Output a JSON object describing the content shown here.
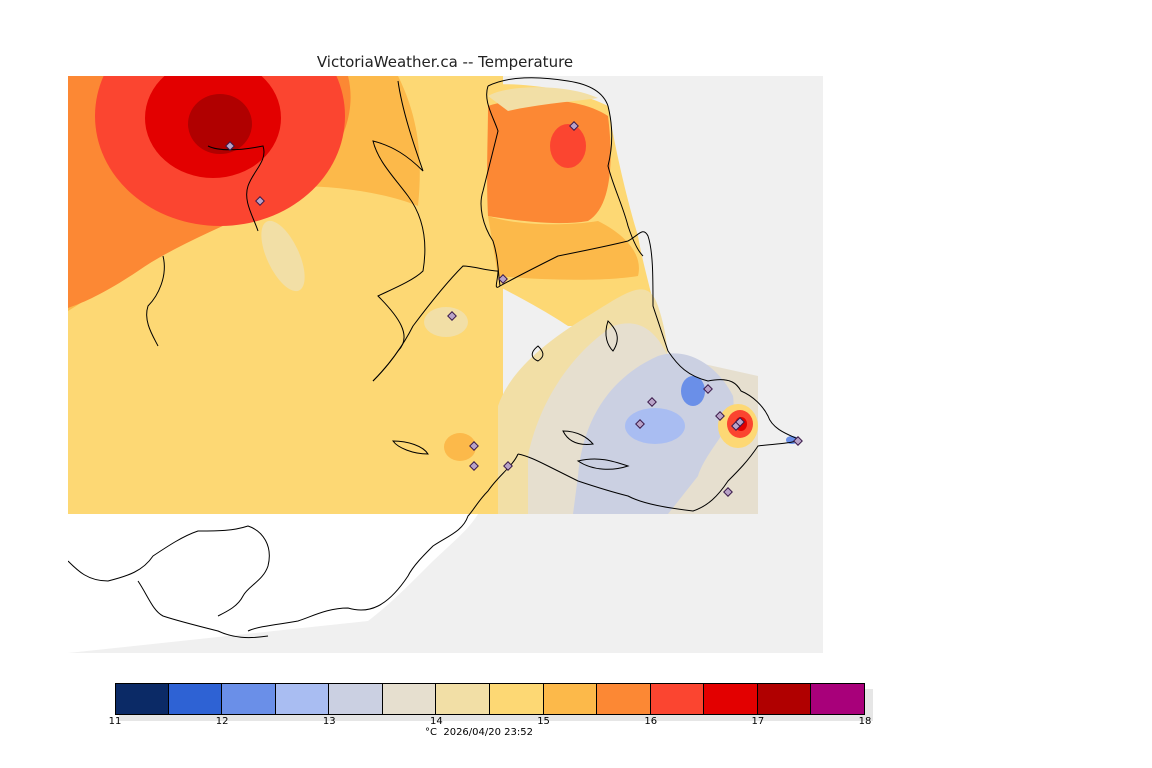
{
  "title": "VictoriaWeather.ca -- Temperature",
  "footer": {
    "unit": "°C",
    "timestamp": "2026/04/20 23:52"
  },
  "legend": {
    "ticks": [
      "11",
      "12",
      "13",
      "14",
      "15",
      "16",
      "17",
      "18"
    ],
    "colors": [
      "#0b2a66",
      "#2e62d4",
      "#6a8fe8",
      "#a9bdf2",
      "#cbd0e2",
      "#e6dfcf",
      "#f2dfa6",
      "#fdd874",
      "#fcb94a",
      "#fc8834",
      "#fb4530",
      "#e30000",
      "#b00000",
      "#a8007a"
    ]
  },
  "map": {
    "region": "Greater Victoria",
    "stations_shown": 17
  }
}
